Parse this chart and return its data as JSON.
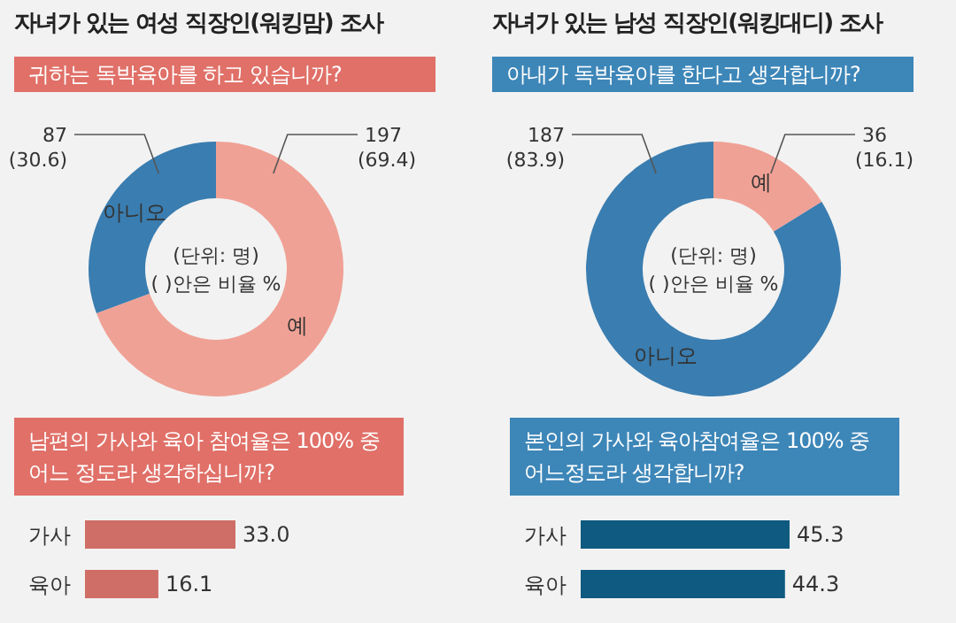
{
  "chart_data": [
    {
      "type": "donut",
      "title": "자녀가 있는 여성 직장인(워킹맘) 조사",
      "subtitle": "귀하는 독박육아를 하고 있습니까?",
      "categories": [
        "예",
        "아니오"
      ],
      "values": [
        197,
        87
      ],
      "colors": [
        "#f0a195",
        "#3a7db0"
      ],
      "value_labels": [
        "197 (69.4)",
        "87 (30.6)"
      ],
      "annotations": [
        "(단위: 명)",
        "( )안은 비율 %"
      ],
      "legend": false
    },
    {
      "type": "donut",
      "title": "자녀가 있는 남성 직장인(워킹대디) 조사",
      "subtitle": "아내가 독박육아를 한다고 생각합니까?",
      "categories": [
        "예",
        "아니오"
      ],
      "values": [
        36,
        187
      ],
      "colors": [
        "#f0a195",
        "#3a7db0"
      ],
      "value_labels": [
        "36 (16.1)",
        "187 (83.9)"
      ],
      "annotations": [
        "(단위: 명)",
        "( )안은 비율 %"
      ],
      "legend": false
    },
    {
      "type": "bar",
      "orientation": "horizontal",
      "title": "남편의 가사와 육아 참여율은 100% 중 어느 정도라 생각하십니까?",
      "categories": [
        "가사",
        "육아"
      ],
      "values": [
        33.0,
        16.1
      ],
      "color": "#cf6e66",
      "value_labels": [
        "33.0",
        "16.1"
      ]
    },
    {
      "type": "bar",
      "orientation": "horizontal",
      "title": "본인의 가사와 육아참여율은 100% 중 어느정도라 생각합니까?",
      "categories": [
        "가사",
        "육아"
      ],
      "values": [
        45.3,
        44.3
      ],
      "color": "#0f5a80",
      "value_labels": [
        "45.3",
        "44.3"
      ]
    }
  ]
}
